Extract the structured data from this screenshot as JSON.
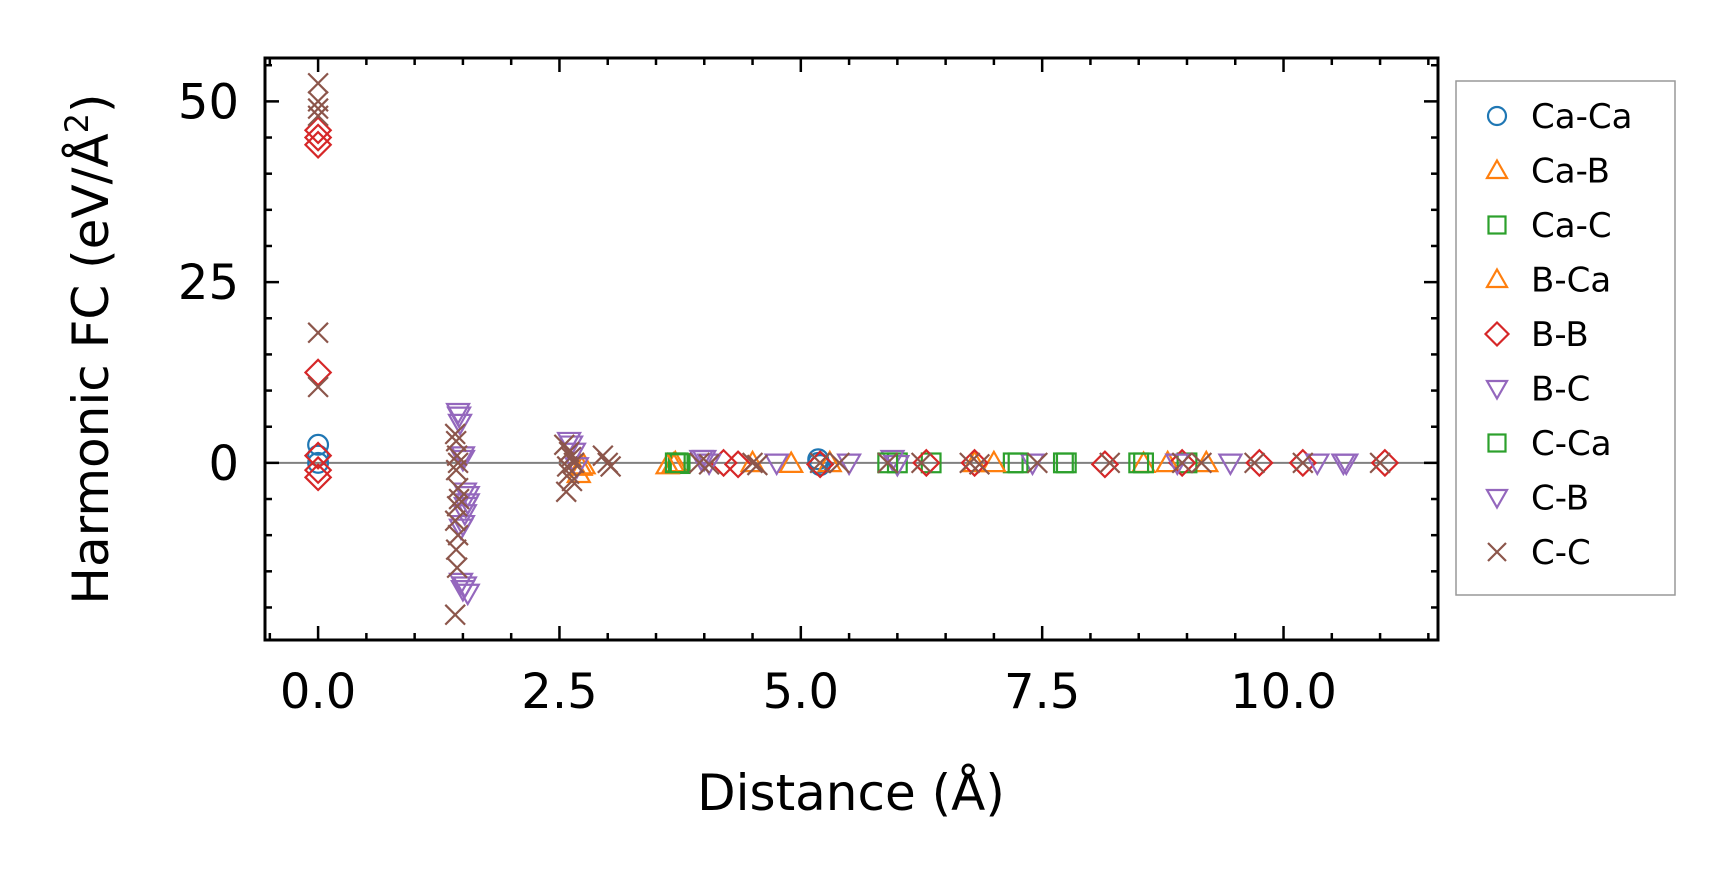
{
  "chart_data": {
    "type": "scatter",
    "xlabel": "Distance (Å)",
    "ylabel_main": "Harmonic FC (eV/Å",
    "ylabel_sup": "2",
    "ylabel_tail": ")",
    "xlim": [
      -0.55,
      11.6
    ],
    "ylim": [
      -24.5,
      56
    ],
    "xticks": [
      0.0,
      2.5,
      5.0,
      7.5,
      10.0
    ],
    "xtick_labels": [
      "0.0",
      "2.5",
      "5.0",
      "7.5",
      "10.0"
    ],
    "yticks": [
      0,
      25,
      50
    ],
    "ytick_labels": [
      "0",
      "25",
      "50"
    ],
    "zero_line": true,
    "grid": false,
    "legend_position": "outside-right",
    "series": [
      {
        "name": "Ca-Ca",
        "marker": "circle",
        "color": "#1f77b4",
        "points": [
          [
            0.0,
            2.5
          ],
          [
            0.0,
            1.0
          ],
          [
            0.0,
            0.0
          ],
          [
            5.18,
            0.5
          ],
          [
            5.18,
            0.0
          ],
          [
            5.2,
            -0.3
          ]
        ]
      },
      {
        "name": "Ca-B",
        "marker": "triangle-up",
        "color": "#ff7f0e",
        "points": [
          [
            2.7,
            -1.5
          ],
          [
            2.72,
            -0.5
          ],
          [
            3.68,
            -0.2
          ],
          [
            3.7,
            0.0
          ],
          [
            4.5,
            0.0
          ],
          [
            5.3,
            0.0
          ],
          [
            6.8,
            0.0
          ],
          [
            8.55,
            -0.1
          ],
          [
            9.2,
            0.0
          ]
        ]
      },
      {
        "name": "Ca-C",
        "marker": "square",
        "color": "#2ca02c",
        "points": [
          [
            3.73,
            0.0
          ],
          [
            3.75,
            -0.1
          ],
          [
            6.0,
            0.0
          ],
          [
            6.35,
            0.0
          ],
          [
            7.2,
            0.0
          ],
          [
            7.72,
            0.0
          ],
          [
            8.55,
            0.0
          ],
          [
            9.0,
            0.0
          ]
        ]
      },
      {
        "name": "B-Ca",
        "marker": "triangle-up",
        "color": "#ff7f0e",
        "points": [
          [
            2.75,
            -0.3
          ],
          [
            3.62,
            -0.3
          ],
          [
            4.9,
            -0.1
          ],
          [
            7.0,
            0.0
          ],
          [
            8.8,
            0.0
          ]
        ]
      },
      {
        "name": "B-B",
        "marker": "diamond",
        "color": "#d62728",
        "points": [
          [
            0.0,
            46.0
          ],
          [
            0.0,
            44.0
          ],
          [
            0.0,
            45.0
          ],
          [
            0.0,
            12.5
          ],
          [
            0.0,
            1.0
          ],
          [
            0.0,
            -2.0
          ],
          [
            0.0,
            -1.0
          ],
          [
            4.2,
            0.0
          ],
          [
            4.35,
            -0.2
          ],
          [
            5.2,
            -0.2
          ],
          [
            6.3,
            0.0
          ],
          [
            6.8,
            0.0
          ],
          [
            8.15,
            -0.2
          ],
          [
            8.95,
            0.0
          ],
          [
            9.75,
            0.0
          ],
          [
            10.2,
            0.0
          ],
          [
            11.05,
            0.0
          ]
        ]
      },
      {
        "name": "B-C",
        "marker": "triangle-down",
        "color": "#9467bd",
        "points": [
          [
            1.45,
            7.0
          ],
          [
            1.47,
            5.5
          ],
          [
            1.5,
            1.0
          ],
          [
            1.52,
            -4.0
          ],
          [
            1.55,
            -5.5
          ],
          [
            1.52,
            -7.0
          ],
          [
            1.48,
            -9.0
          ],
          [
            1.48,
            -16.5
          ],
          [
            1.5,
            -17.5
          ],
          [
            1.55,
            -18.0
          ],
          [
            2.62,
            2.5
          ],
          [
            2.65,
            1.5
          ],
          [
            3.97,
            0.5
          ],
          [
            4.05,
            0.0
          ],
          [
            4.75,
            0.0
          ],
          [
            5.95,
            0.5
          ],
          [
            6.0,
            -0.2
          ],
          [
            7.4,
            0.0
          ],
          [
            9.45,
            0.0
          ],
          [
            10.35,
            0.0
          ],
          [
            10.62,
            0.0
          ]
        ]
      },
      {
        "name": "C-Ca",
        "marker": "square",
        "color": "#2ca02c",
        "points": [
          [
            3.7,
            0.0
          ],
          [
            5.9,
            0.0
          ],
          [
            7.25,
            0.0
          ],
          [
            7.75,
            0.0
          ],
          [
            8.5,
            0.0
          ]
        ]
      },
      {
        "name": "C-B",
        "marker": "triangle-down",
        "color": "#9467bd",
        "points": [
          [
            1.46,
            6.5
          ],
          [
            1.5,
            0.5
          ],
          [
            1.55,
            -4.5
          ],
          [
            1.53,
            -6.0
          ],
          [
            1.5,
            -8.5
          ],
          [
            1.52,
            -17.0
          ],
          [
            2.6,
            3.0
          ],
          [
            2.68,
            -0.5
          ],
          [
            4.0,
            0.5
          ],
          [
            5.5,
            0.0
          ],
          [
            8.9,
            0.0
          ],
          [
            10.65,
            0.0
          ]
        ]
      },
      {
        "name": "C-C",
        "marker": "x",
        "color": "#8c564b",
        "points": [
          [
            0.0,
            52.5
          ],
          [
            0.0,
            50.0
          ],
          [
            0.0,
            49.0
          ],
          [
            0.0,
            48.0
          ],
          [
            0.0,
            18.0
          ],
          [
            0.0,
            10.5
          ],
          [
            1.42,
            4.0
          ],
          [
            1.43,
            3.0
          ],
          [
            1.44,
            1.0
          ],
          [
            1.45,
            0.0
          ],
          [
            1.43,
            -1.0
          ],
          [
            1.45,
            -3.5
          ],
          [
            1.46,
            -5.0
          ],
          [
            1.44,
            -6.0
          ],
          [
            1.42,
            -8.0
          ],
          [
            1.45,
            -10.0
          ],
          [
            1.43,
            -12.0
          ],
          [
            1.44,
            -14.5
          ],
          [
            1.42,
            -21.0
          ],
          [
            2.55,
            2.5
          ],
          [
            2.6,
            1.5
          ],
          [
            2.62,
            0.8
          ],
          [
            2.65,
            0.0
          ],
          [
            2.58,
            -0.5
          ],
          [
            2.6,
            -1.5
          ],
          [
            2.63,
            -2.5
          ],
          [
            2.57,
            -4.0
          ],
          [
            2.95,
            1.0
          ],
          [
            3.0,
            0.0
          ],
          [
            3.03,
            -0.5
          ],
          [
            3.95,
            0.0
          ],
          [
            4.05,
            -0.2
          ],
          [
            4.5,
            0.0
          ],
          [
            4.55,
            -0.3
          ],
          [
            5.2,
            0.0
          ],
          [
            5.4,
            0.0
          ],
          [
            5.9,
            0.0
          ],
          [
            6.25,
            0.0
          ],
          [
            6.75,
            0.0
          ],
          [
            6.85,
            -0.2
          ],
          [
            7.45,
            0.0
          ],
          [
            8.2,
            0.0
          ],
          [
            8.95,
            0.0
          ],
          [
            9.15,
            0.0
          ],
          [
            9.7,
            0.0
          ],
          [
            10.2,
            0.0
          ],
          [
            11.0,
            0.0
          ]
        ]
      }
    ]
  }
}
